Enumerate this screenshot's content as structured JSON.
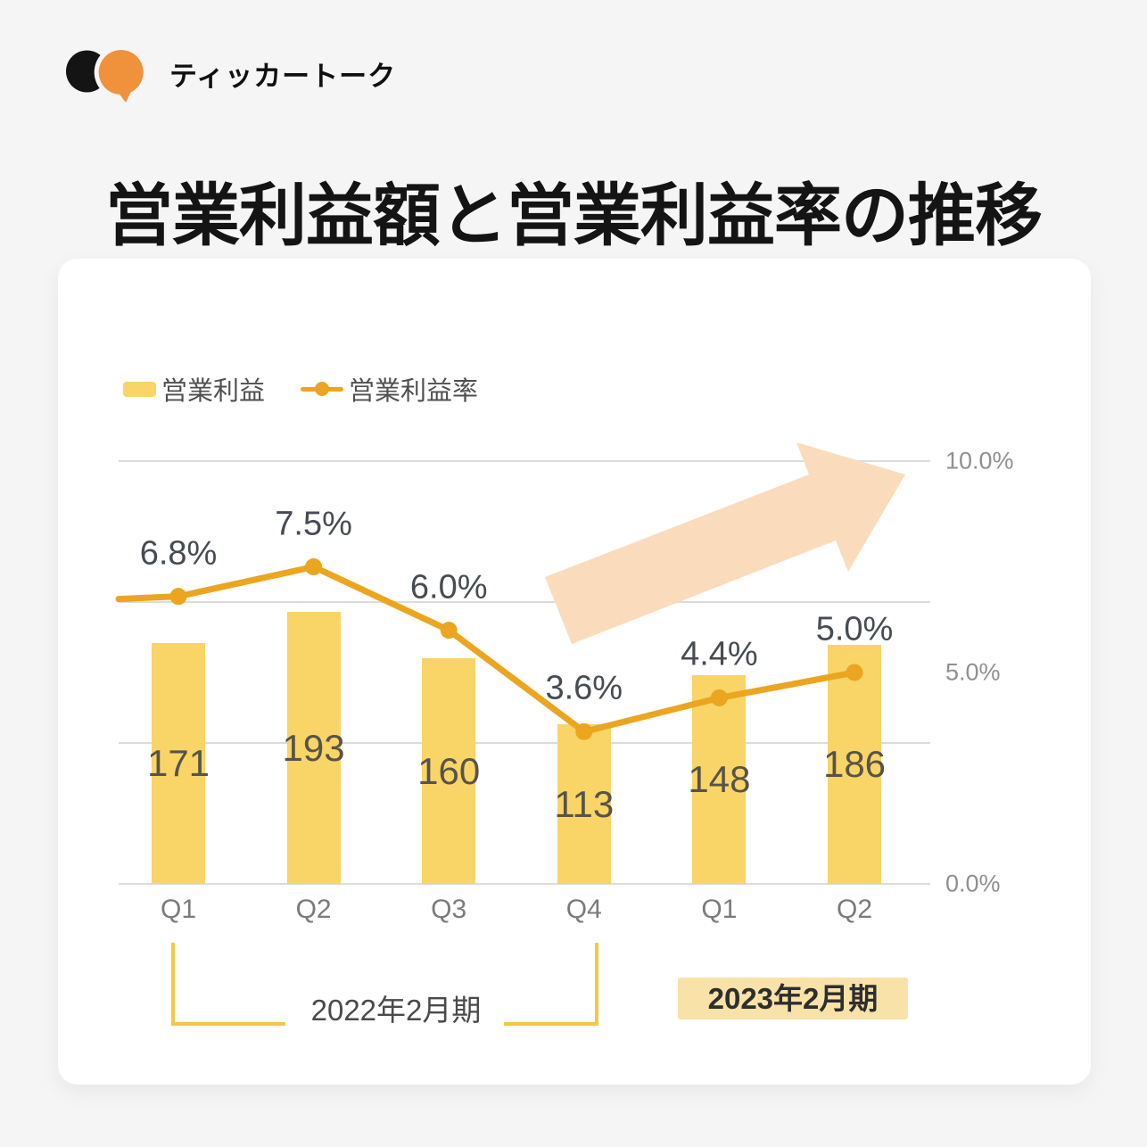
{
  "logo": {
    "brand": "ティッカートーク"
  },
  "title": "営業利益額と営業利益率の推移",
  "chart_data": {
    "type": "combo_bar_line",
    "title": "営業利益額と営業利益率の推移",
    "categories": [
      "Q1",
      "Q2",
      "Q3",
      "Q4",
      "Q1",
      "Q2"
    ],
    "series": [
      {
        "name": "営業利益",
        "type": "bar",
        "values": [
          171,
          193,
          160,
          113,
          148,
          186
        ],
        "value_labels": [
          "171",
          "193",
          "160",
          "113",
          "148",
          "186"
        ],
        "color": "#F8D566"
      },
      {
        "name": "営業利益率",
        "type": "line",
        "values": [
          6.8,
          7.5,
          6.0,
          3.6,
          4.4,
          5.0
        ],
        "value_labels": [
          "6.8%",
          "7.5%",
          "6.0%",
          "3.6%",
          "4.4%",
          "5.0%"
        ],
        "color": "#EBA51F"
      }
    ],
    "right_axis": {
      "min": 0,
      "max": 10,
      "tick_labels": [
        "10.0%",
        "5.0%",
        "0.0%"
      ],
      "tick_values": [
        10,
        5,
        0
      ]
    },
    "left_axis": {
      "min": 0,
      "max": 300,
      "visible": false
    },
    "gridlines": {
      "count": 4,
      "color": "#DCDCDC"
    },
    "legend_position": "top-left",
    "period_groups": [
      {
        "label": "2022年2月期",
        "categories": [
          "Q1",
          "Q2",
          "Q3",
          "Q4"
        ],
        "style": "bracket"
      },
      {
        "label": "2023年2月期",
        "categories": [
          "Q1",
          "Q2"
        ],
        "style": "badge"
      }
    ],
    "annotation": "upward-trend-arrow"
  },
  "colors": {
    "bar": "#F8D566",
    "line": "#EBA51F",
    "arrow": "#FADCBC",
    "bracket": "#F5C843",
    "badge_bg": "#F8E2A8",
    "gridline": "#DCDCDC",
    "page_bg": "#F5F5F6",
    "card_bg": "#FFFFFF",
    "logo_orange": "#F0923B"
  }
}
